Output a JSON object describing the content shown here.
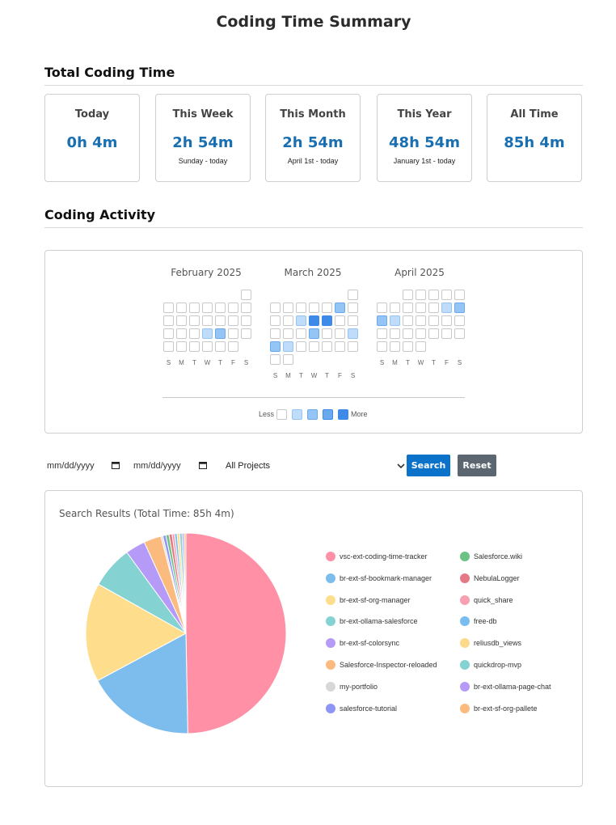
{
  "page": {
    "title": "Coding Time Summary"
  },
  "total_section": {
    "title": "Total Coding Time",
    "cards": [
      {
        "label": "Today",
        "value": "0h 4m",
        "sub": ""
      },
      {
        "label": "This Week",
        "value": "2h 54m",
        "sub": "Sunday - today"
      },
      {
        "label": "This Month",
        "value": "2h 54m",
        "sub": "April 1st - today"
      },
      {
        "label": "This Year",
        "value": "48h 54m",
        "sub": "January 1st - today"
      },
      {
        "label": "All Time",
        "value": "85h 4m",
        "sub": ""
      }
    ]
  },
  "activity_section": {
    "title": "Coding Activity",
    "weekday_labels": [
      "S",
      "M",
      "T",
      "W",
      "T",
      "F",
      "S"
    ],
    "level_colors": [
      "#ffffff",
      "#bfdcfb",
      "#95c5f5",
      "#6aa9ee",
      "#3d8ae8"
    ],
    "legend": {
      "less": "Less",
      "more": "More"
    },
    "months": [
      {
        "name": "February 2025",
        "weeks": [
          [
            null,
            null,
            null,
            null,
            null,
            null,
            0
          ],
          [
            0,
            0,
            0,
            0,
            0,
            0,
            0
          ],
          [
            0,
            0,
            0,
            0,
            0,
            0,
            0
          ],
          [
            0,
            0,
            0,
            1,
            2,
            0,
            0
          ],
          [
            0,
            0,
            0,
            0,
            0,
            0,
            null
          ]
        ]
      },
      {
        "name": "March 2025",
        "weeks": [
          [
            null,
            null,
            null,
            null,
            null,
            null,
            0
          ],
          [
            0,
            0,
            0,
            0,
            0,
            2,
            0
          ],
          [
            0,
            0,
            1,
            4,
            4,
            0,
            0
          ],
          [
            0,
            0,
            0,
            2,
            0,
            0,
            1
          ],
          [
            2,
            1,
            0,
            0,
            0,
            0,
            0
          ],
          [
            0,
            0,
            null,
            null,
            null,
            null,
            null
          ]
        ]
      },
      {
        "name": "April 2025",
        "weeks": [
          [
            null,
            null,
            0,
            0,
            0,
            0,
            0
          ],
          [
            0,
            0,
            0,
            0,
            0,
            1,
            2
          ],
          [
            2,
            1,
            0,
            0,
            0,
            0,
            0
          ],
          [
            0,
            0,
            0,
            0,
            0,
            0,
            0
          ],
          [
            0,
            0,
            0,
            0,
            null,
            null,
            null
          ]
        ]
      }
    ]
  },
  "filters": {
    "start_date_placeholder": "mm/dd/yyyy",
    "end_date_placeholder": "mm/dd/yyyy",
    "project_selected": "All Projects",
    "search_label": "Search",
    "reset_label": "Reset"
  },
  "results": {
    "title": "Search Results (Total Time: 85h 4m)"
  },
  "chart_data": {
    "type": "pie",
    "title": "Search Results (Total Time: 85h 4m)",
    "legend_position": "right",
    "slices": [
      {
        "name": "vsc-ext-coding-time-tracker",
        "value": 49.5,
        "color": "#ff90a6"
      },
      {
        "name": "br-ext-sf-bookmark-manager",
        "value": 17.4,
        "color": "#7cbdee"
      },
      {
        "name": "br-ext-sf-org-manager",
        "value": 15.9,
        "color": "#fede8c"
      },
      {
        "name": "br-ext-ollama-salesforce",
        "value": 6.8,
        "color": "#84d2d2"
      },
      {
        "name": "br-ext-sf-colorsync",
        "value": 3.2,
        "color": "#b69af7"
      },
      {
        "name": "Salesforce-Inspector-reloaded",
        "value": 2.8,
        "color": "#fcbb7e"
      },
      {
        "name": "my-portfolio",
        "value": 0.3,
        "color": "#d7d7d7"
      },
      {
        "name": "salesforce-tutorial",
        "value": 0.5,
        "color": "#8f95f5"
      },
      {
        "name": "Salesforce.wiki",
        "value": 0.5,
        "color": "#6cc285"
      },
      {
        "name": "NebulaLogger",
        "value": 0.5,
        "color": "#e57886"
      },
      {
        "name": "quick_share",
        "value": 0.4,
        "color": "#f7a0b2"
      },
      {
        "name": "free-db",
        "value": 0.4,
        "color": "#78bdf0"
      },
      {
        "name": "reliusdb_views",
        "value": 0.4,
        "color": "#fdd98b"
      },
      {
        "name": "quickdrop-mvp",
        "value": 0.4,
        "color": "#84d2d2"
      },
      {
        "name": "br-ext-ollama-page-chat",
        "value": 0.3,
        "color": "#b69af7"
      },
      {
        "name": "br-ext-sf-org-pallete",
        "value": 0.3,
        "color": "#fcbb7e"
      }
    ]
  }
}
